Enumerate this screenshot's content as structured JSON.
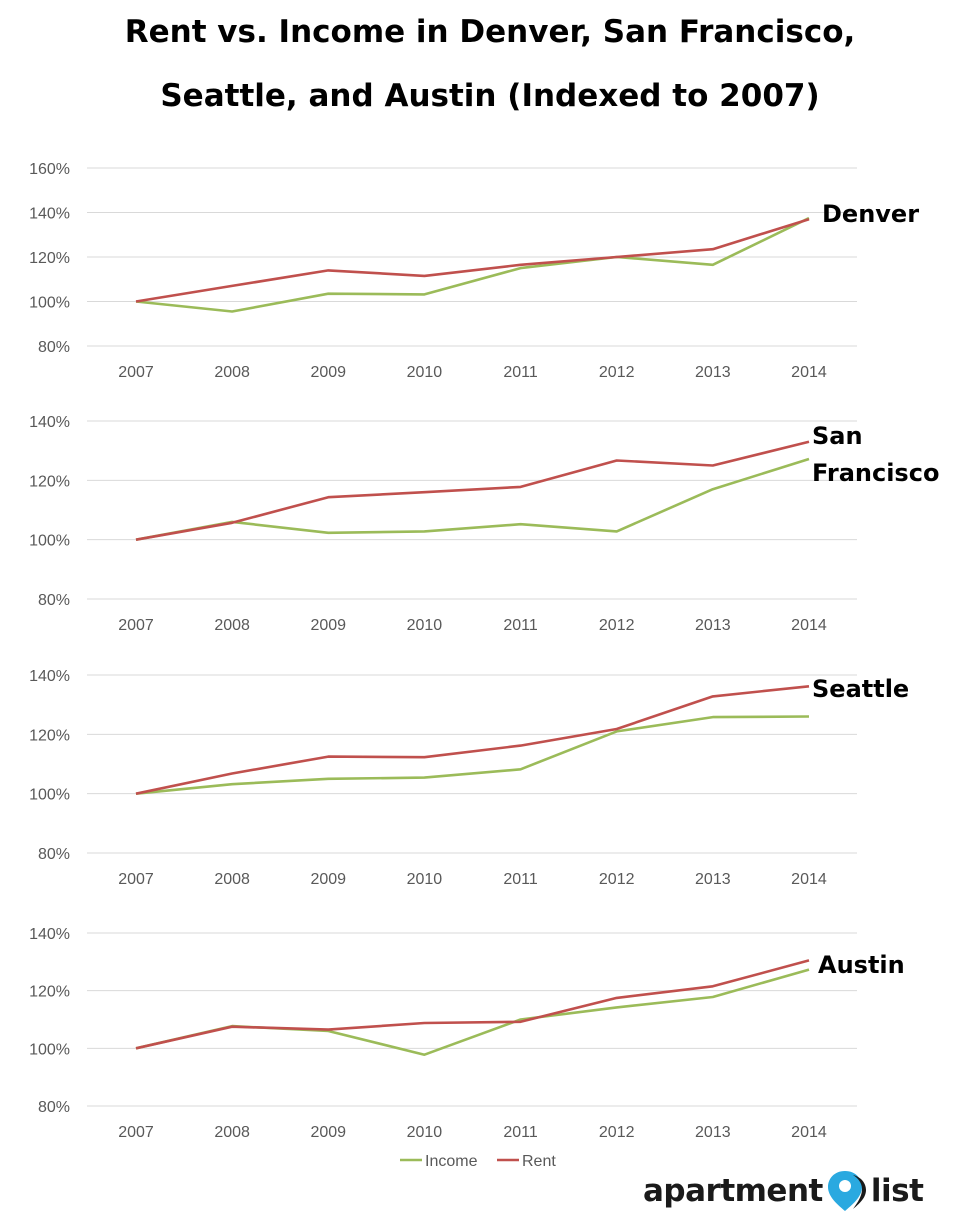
{
  "title_line1": "Rent vs. Income in Denver, San Francisco,",
  "title_line2": "Seattle, and Austin (Indexed to 2007)",
  "logo": {
    "word1": "apartment",
    "word2": "list",
    "pin_icon": "map-pin-icon",
    "pin_color": "#2aa9e0",
    "text_color": "#1a1a1a"
  },
  "colors": {
    "income": "#9bbb59",
    "rent": "#c0504d",
    "grid": "#d9d9d9",
    "tick": "#595959"
  },
  "chart_data": [
    {
      "type": "line",
      "city_label": [
        "Denver"
      ],
      "x": [
        "2007",
        "2008",
        "2009",
        "2010",
        "2011",
        "2012",
        "2013",
        "2014"
      ],
      "y_ticks": [
        "80%",
        "100%",
        "120%",
        "140%",
        "160%"
      ],
      "ylim": [
        80,
        160
      ],
      "series": [
        {
          "name": "Income",
          "values": [
            100,
            95.5,
            103.5,
            103.2,
            115,
            120,
            116.5,
            137.5
          ]
        },
        {
          "name": "Rent",
          "values": [
            100,
            107,
            114,
            111.5,
            116.5,
            120,
            123.5,
            137
          ]
        }
      ]
    },
    {
      "type": "line",
      "city_label": [
        "San",
        "Francisco"
      ],
      "x": [
        "2007",
        "2008",
        "2009",
        "2010",
        "2011",
        "2012",
        "2013",
        "2014"
      ],
      "y_ticks": [
        "80%",
        "100%",
        "120%",
        "140%"
      ],
      "ylim": [
        80,
        140
      ],
      "series": [
        {
          "name": "Income",
          "values": [
            100,
            106,
            102.3,
            102.8,
            105.2,
            102.8,
            117,
            127.2
          ]
        },
        {
          "name": "Rent",
          "values": [
            100,
            105.7,
            114.3,
            116,
            117.8,
            126.7,
            125,
            133
          ]
        }
      ]
    },
    {
      "type": "line",
      "city_label": [
        "Seattle"
      ],
      "x": [
        "2007",
        "2008",
        "2009",
        "2010",
        "2011",
        "2012",
        "2013",
        "2014"
      ],
      "y_ticks": [
        "80%",
        "100%",
        "120%",
        "140%"
      ],
      "ylim": [
        80,
        140
      ],
      "series": [
        {
          "name": "Income",
          "values": [
            100,
            103.2,
            105,
            105.4,
            108.2,
            121,
            125.8,
            126
          ]
        },
        {
          "name": "Rent",
          "values": [
            100,
            106.8,
            112.5,
            112.3,
            116.2,
            121.8,
            132.8,
            136.2
          ]
        }
      ]
    },
    {
      "type": "line",
      "city_label": [
        "Austin"
      ],
      "x": [
        "2007",
        "2008",
        "2009",
        "2010",
        "2011",
        "2012",
        "2013",
        "2014"
      ],
      "y_ticks": [
        "80%",
        "100%",
        "120%",
        "140%"
      ],
      "ylim": [
        80,
        140
      ],
      "series": [
        {
          "name": "Income",
          "values": [
            100,
            107.7,
            106,
            97.8,
            110,
            114.2,
            117.8,
            127.3
          ]
        },
        {
          "name": "Rent",
          "values": [
            100,
            107.5,
            106.5,
            108.8,
            109.2,
            117.5,
            121.5,
            130.5
          ]
        }
      ]
    }
  ],
  "legend": [
    "Income",
    "Rent"
  ]
}
